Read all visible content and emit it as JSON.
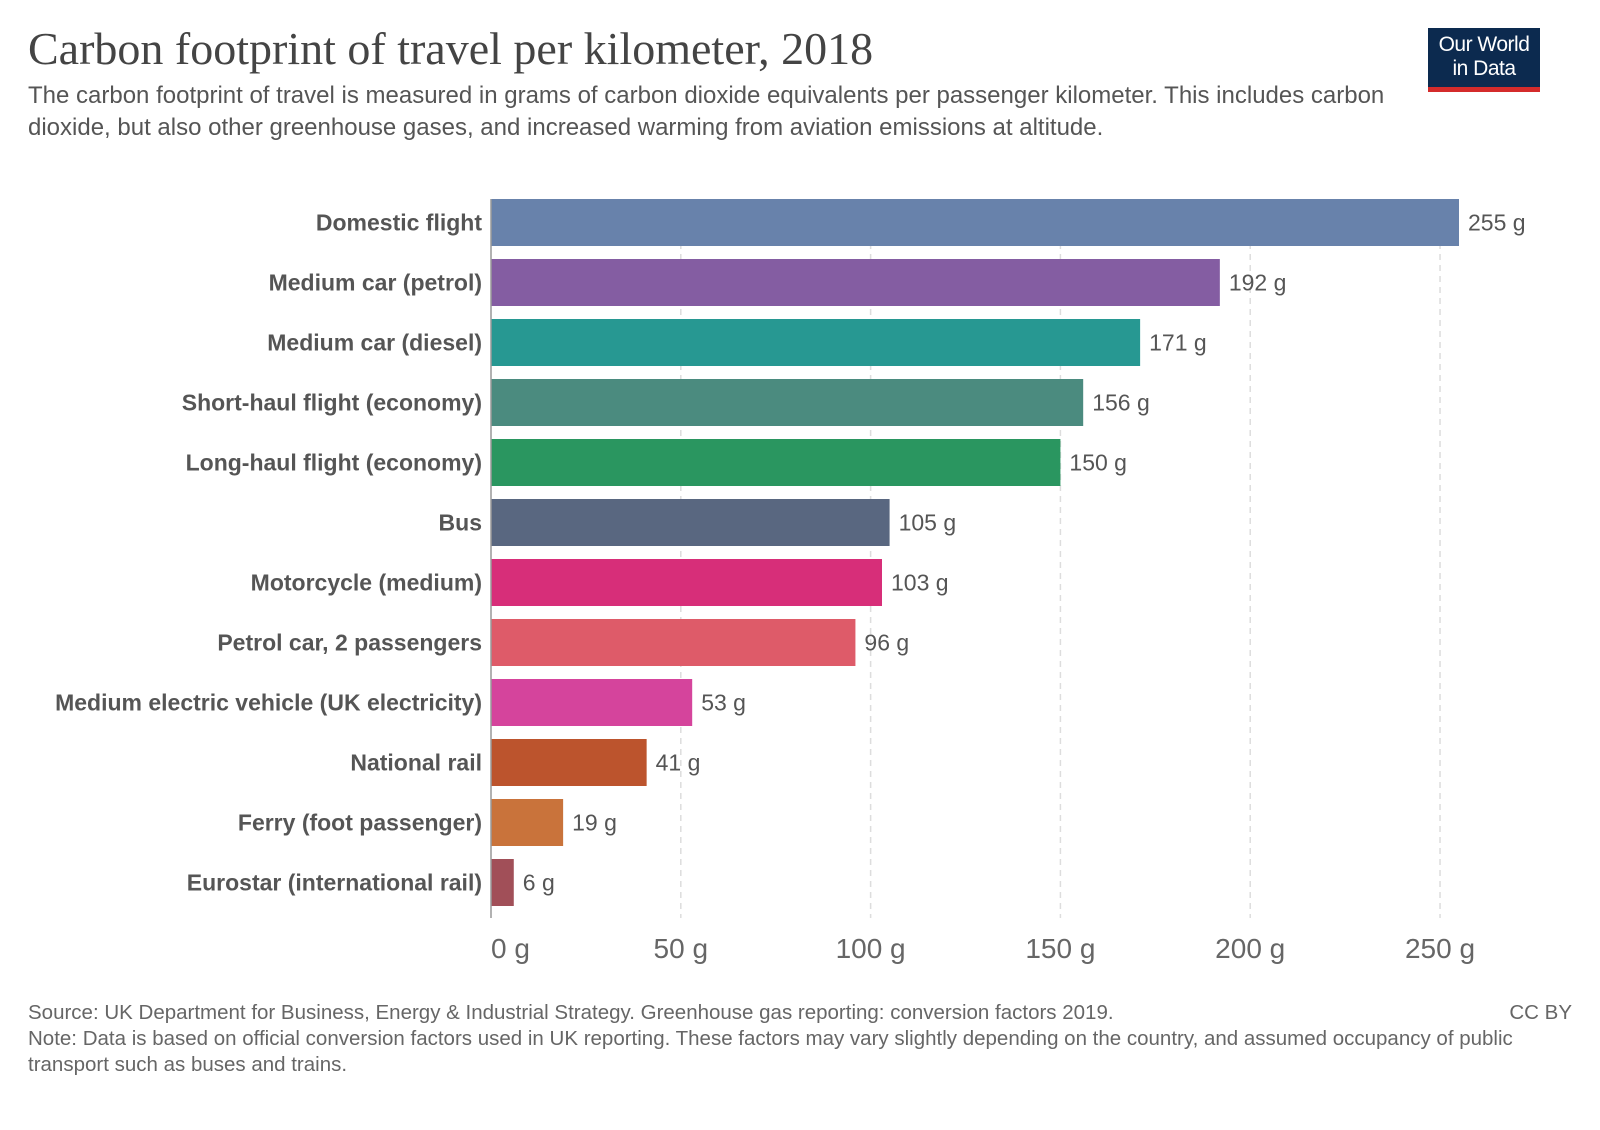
{
  "title": "Carbon footprint of travel per kilometer, 2018",
  "subtitle": "The carbon footprint of travel is measured in grams of carbon dioxide equivalents per passenger kilometer. This includes carbon dioxide, but also other greenhouse gases, and increased warming from aviation emissions at altitude.",
  "logo": {
    "line1": "Our World",
    "line2": "in Data"
  },
  "source": "Source: UK Department for Business, Energy & Industrial Strategy. Greenhouse gas reporting: conversion factors 2019.",
  "note": "Note: Data is based on official conversion factors used in UK reporting. These factors may vary slightly depending on the country, and assumed occupancy of public transport such as buses and trains.",
  "license": "CC BY",
  "chart_data": {
    "type": "bar",
    "orientation": "horizontal",
    "title": "Carbon footprint of travel per kilometer, 2018",
    "categories": [
      "Domestic flight",
      "Medium car (petrol)",
      "Medium car (diesel)",
      "Short-haul flight (economy)",
      "Long-haul flight (economy)",
      "Bus",
      "Motorcycle (medium)",
      "Petrol car, 2 passengers",
      "Medium electric vehicle (UK electricity)",
      "National rail",
      "Ferry (foot passenger)",
      "Eurostar (international rail)"
    ],
    "values": [
      255,
      192,
      171,
      156,
      150,
      105,
      103,
      96,
      53,
      41,
      19,
      6
    ],
    "value_labels": [
      "255 g",
      "192 g",
      "171 g",
      "156 g",
      "150 g",
      "105 g",
      "103 g",
      "96 g",
      "53 g",
      "41 g",
      "19 g",
      "6 g"
    ],
    "colors": [
      "#6882ab",
      "#845da2",
      "#279892",
      "#4b8b7f",
      "#2a9660",
      "#596780",
      "#d72e79",
      "#de5b69",
      "#d5449c",
      "#bc542d",
      "#c9733b",
      "#a14f58"
    ],
    "xlim": [
      0,
      255
    ],
    "xticks": [
      0,
      50,
      100,
      150,
      200,
      250
    ],
    "xtick_labels": [
      "0 g",
      "50 g",
      "100 g",
      "150 g",
      "200 g",
      "250 g"
    ],
    "grid": true,
    "grid_color": "#dddddd",
    "xlabel": "",
    "ylabel": ""
  }
}
